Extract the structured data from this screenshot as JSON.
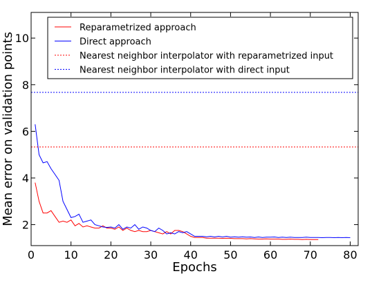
{
  "chart_data": {
    "type": "line",
    "title": "",
    "xlabel": "Epochs",
    "ylabel": "Mean error on validation points",
    "xlim": [
      0,
      82
    ],
    "ylim": [
      1.1,
      11.1
    ],
    "xticks": [
      0,
      10,
      20,
      30,
      40,
      50,
      60,
      70,
      80
    ],
    "yticks": [
      2,
      4,
      6,
      8,
      10
    ],
    "grid": false,
    "legend_position": "top",
    "series": [
      {
        "name": "Reparametrized approach",
        "color": "#ff0000",
        "style": "solid",
        "x": [
          1,
          2,
          3,
          4,
          5,
          6,
          7,
          8,
          9,
          10,
          11,
          12,
          13,
          14,
          15,
          16,
          17,
          18,
          19,
          20,
          21,
          22,
          23,
          24,
          25,
          26,
          27,
          28,
          29,
          30,
          31,
          32,
          33,
          34,
          35,
          36,
          37,
          38,
          39,
          40,
          41,
          42,
          43,
          44,
          45,
          46,
          47,
          48,
          49,
          50,
          51,
          52,
          53,
          54,
          55,
          56,
          57,
          58,
          59,
          60,
          61,
          62,
          63,
          64,
          65,
          66,
          67,
          68,
          69,
          70,
          71,
          72
        ],
        "y": [
          3.8,
          3.0,
          2.5,
          2.5,
          2.6,
          2.35,
          2.1,
          2.15,
          2.1,
          2.2,
          1.95,
          2.05,
          1.9,
          1.95,
          1.9,
          1.85,
          1.85,
          1.95,
          1.85,
          1.85,
          1.8,
          1.9,
          1.75,
          1.85,
          1.75,
          1.7,
          1.75,
          1.7,
          1.7,
          1.75,
          1.7,
          1.65,
          1.6,
          1.7,
          1.6,
          1.75,
          1.75,
          1.7,
          1.6,
          1.5,
          1.45,
          1.45,
          1.45,
          1.42,
          1.42,
          1.42,
          1.42,
          1.41,
          1.42,
          1.41,
          1.4,
          1.4,
          1.4,
          1.39,
          1.4,
          1.39,
          1.38,
          1.38,
          1.39,
          1.38,
          1.38,
          1.38,
          1.37,
          1.37,
          1.38,
          1.37,
          1.37,
          1.36,
          1.37,
          1.36,
          1.36,
          1.36
        ]
      },
      {
        "name": "Direct approach",
        "color": "#0000ff",
        "style": "solid",
        "x": [
          1,
          2,
          3,
          4,
          5,
          6,
          7,
          8,
          9,
          10,
          11,
          12,
          13,
          14,
          15,
          16,
          17,
          18,
          19,
          20,
          21,
          22,
          23,
          24,
          25,
          26,
          27,
          28,
          29,
          30,
          31,
          32,
          33,
          34,
          35,
          36,
          37,
          38,
          39,
          40,
          41,
          42,
          43,
          44,
          45,
          46,
          47,
          48,
          49,
          50,
          51,
          52,
          53,
          54,
          55,
          56,
          57,
          58,
          59,
          60,
          61,
          62,
          63,
          64,
          65,
          66,
          67,
          68,
          69,
          70,
          71,
          72,
          73,
          74,
          75,
          76,
          77,
          78,
          79,
          80
        ],
        "y": [
          6.3,
          5.0,
          4.65,
          4.7,
          4.4,
          4.15,
          3.9,
          3.0,
          2.65,
          2.3,
          2.35,
          2.45,
          2.1,
          2.15,
          2.2,
          2.0,
          1.95,
          1.9,
          1.88,
          1.9,
          1.85,
          2.0,
          1.8,
          1.9,
          1.85,
          2.0,
          1.8,
          1.9,
          1.85,
          1.75,
          1.7,
          1.85,
          1.75,
          1.6,
          1.65,
          1.6,
          1.7,
          1.65,
          1.7,
          1.6,
          1.5,
          1.5,
          1.5,
          1.48,
          1.5,
          1.47,
          1.5,
          1.47,
          1.5,
          1.46,
          1.48,
          1.46,
          1.48,
          1.46,
          1.47,
          1.45,
          1.47,
          1.45,
          1.46,
          1.46,
          1.47,
          1.45,
          1.46,
          1.45,
          1.46,
          1.45,
          1.45,
          1.45,
          1.46,
          1.45,
          1.45,
          1.45,
          1.44,
          1.45,
          1.45,
          1.44,
          1.45,
          1.44,
          1.45,
          1.44
        ]
      },
      {
        "name": "Nearest neighbor interpolator with reparametrized input",
        "color": "#ff0000",
        "style": "dotted",
        "constant": 5.33
      },
      {
        "name": "Nearest neighbor interpolator with direct input",
        "color": "#0000ff",
        "style": "dotted",
        "constant": 7.67
      }
    ]
  }
}
